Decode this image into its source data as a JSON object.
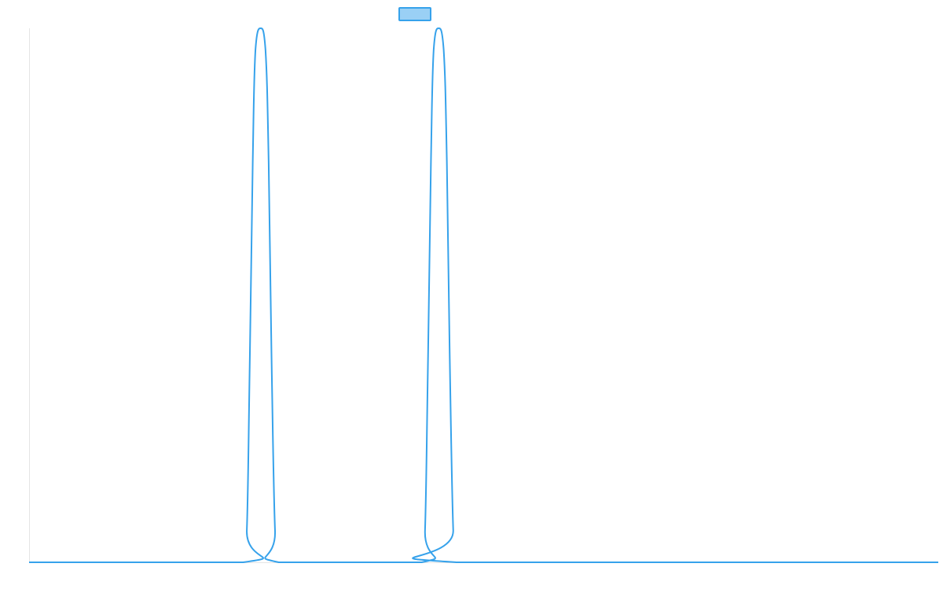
{
  "colors": {
    "line": "#36A2EB",
    "legend_fill": "#9AD0F5",
    "axis": "#E5E5E5"
  },
  "chart_data": {
    "type": "line",
    "legend": {
      "placement": "top-center",
      "entries": [
        {
          "label": "",
          "color": "#36A2EB"
        }
      ]
    },
    "x_range": [
      0,
      1
    ],
    "y_range": [
      0,
      1
    ],
    "grid": false,
    "series": [
      {
        "values": [
          {
            "x": 0.0,
            "y": 0.0
          },
          {
            "x": 0.2355,
            "y": 0.0
          },
          {
            "x": 0.2395,
            "y": 0.06
          },
          {
            "x": 0.2425,
            "y": 0.35
          },
          {
            "x": 0.246,
            "y": 0.75
          },
          {
            "x": 0.249,
            "y": 0.96
          },
          {
            "x": 0.2547,
            "y": 1.0
          },
          {
            "x": 0.26,
            "y": 0.96
          },
          {
            "x": 0.2635,
            "y": 0.75
          },
          {
            "x": 0.267,
            "y": 0.35
          },
          {
            "x": 0.2705,
            "y": 0.06
          },
          {
            "x": 0.2747,
            "y": 0.0
          },
          {
            "x": 0.4318,
            "y": 0.0
          },
          {
            "x": 0.4355,
            "y": 0.06
          },
          {
            "x": 0.4385,
            "y": 0.35
          },
          {
            "x": 0.442,
            "y": 0.75
          },
          {
            "x": 0.445,
            "y": 0.96
          },
          {
            "x": 0.4505,
            "y": 1.0
          },
          {
            "x": 0.456,
            "y": 0.96
          },
          {
            "x": 0.4595,
            "y": 0.75
          },
          {
            "x": 0.463,
            "y": 0.35
          },
          {
            "x": 0.4665,
            "y": 0.06
          },
          {
            "x": 0.47,
            "y": 0.0
          },
          {
            "x": 1.0,
            "y": 0.0
          }
        ]
      }
    ]
  }
}
